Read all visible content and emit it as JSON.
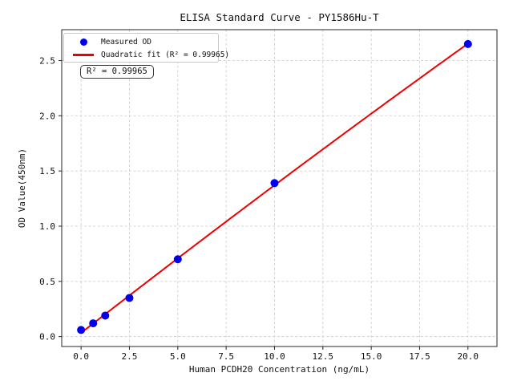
{
  "chart_data": {
    "type": "scatter",
    "title": "ELISA Standard Curve - PY1586Hu-T",
    "xlabel": "Human PCDH20 Concentration (ng/mL)",
    "ylabel": "OD Value(450nm)",
    "xlim": [
      -1,
      21.5
    ],
    "ylim": [
      -0.09,
      2.78
    ],
    "xticks": [
      0,
      2.5,
      5,
      7.5,
      10,
      12.5,
      15,
      17.5,
      20
    ],
    "xtick_labels": [
      "0.0",
      "2.5",
      "5.0",
      "7.5",
      "10.0",
      "12.5",
      "15.0",
      "17.5",
      "20.0"
    ],
    "yticks": [
      0,
      0.5,
      1,
      1.5,
      2,
      2.5
    ],
    "ytick_labels": [
      "0.0",
      "0.5",
      "1.0",
      "1.5",
      "2.0",
      "2.5"
    ],
    "grid": true,
    "legend_position": "upper-left",
    "series": [
      {
        "name": "Measured OD",
        "type": "scatter",
        "marker": "circle",
        "color": "#0000ee",
        "x": [
          0,
          0.625,
          1.25,
          2.5,
          5,
          10,
          20
        ],
        "y": [
          0.06,
          0.12,
          0.19,
          0.35,
          0.7,
          1.39,
          2.65
        ]
      },
      {
        "name": "Quadratic fit (R² = 0.99965)",
        "type": "quadratic_fit",
        "color": "#ee0000",
        "x_range": [
          0,
          20
        ],
        "r_squared": 0.99965
      }
    ],
    "annotation": {
      "text": "R² = 0.99965"
    }
  },
  "colors": {
    "scatter": "#0000ee",
    "fit_line": "#ee0000",
    "grid": "#cfcfcf",
    "spine": "#262626"
  }
}
